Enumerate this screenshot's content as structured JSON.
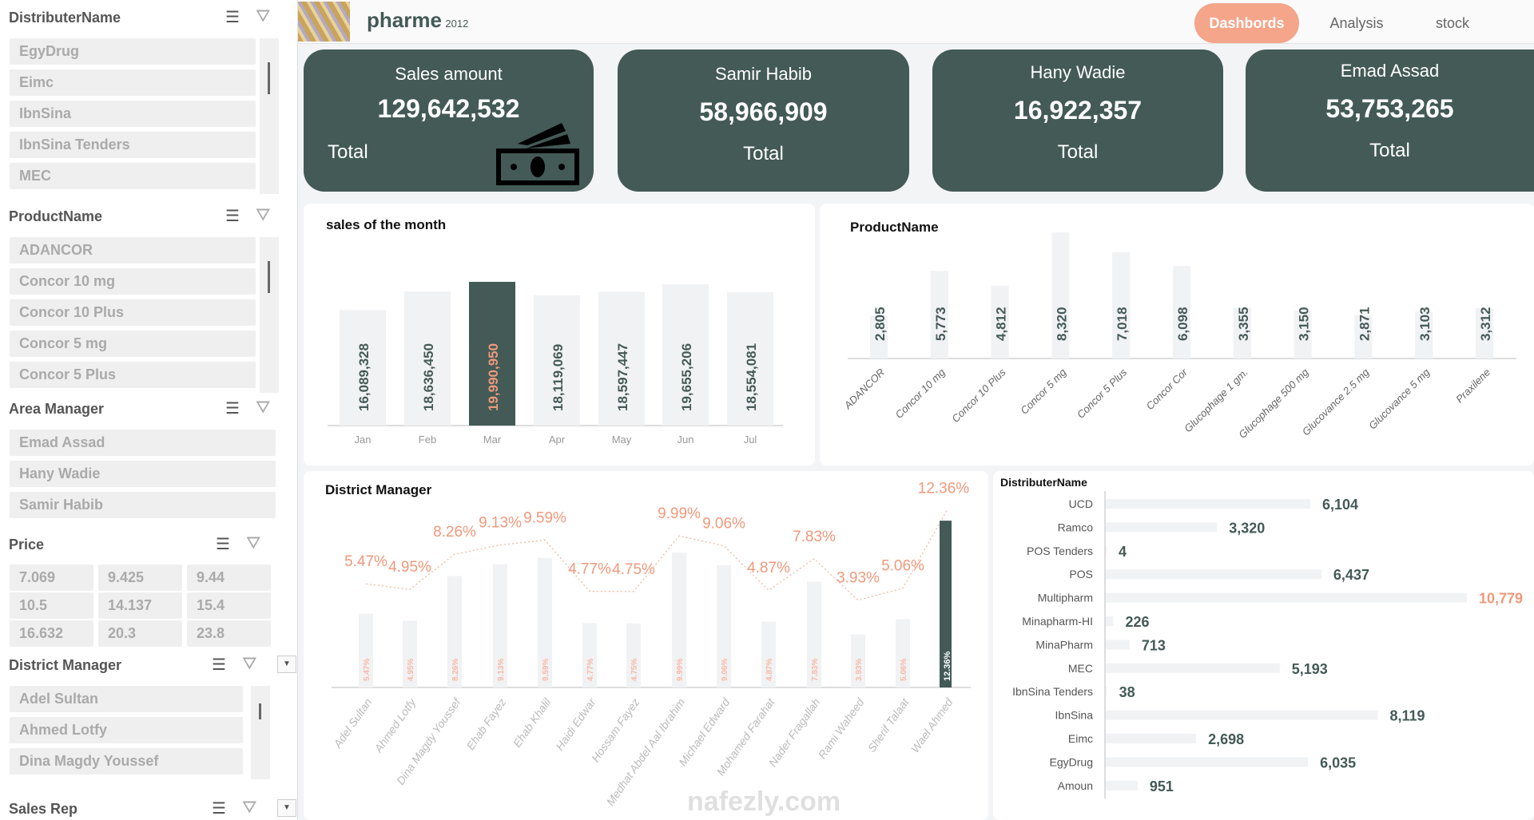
{
  "sidebar": {
    "slicers": [
      {
        "title": "DistributerName",
        "items": [
          "EgyDrug",
          "Eimc",
          "IbnSina",
          "IbnSina Tenders",
          "MEC"
        ]
      },
      {
        "title": "ProductName",
        "items": [
          "ADANCOR",
          "Concor 10 mg",
          "Concor 10 Plus",
          "Concor 5 mg",
          "Concor 5 Plus"
        ]
      },
      {
        "title": "Area Manager",
        "items": [
          "Emad Assad",
          "Hany Wadie",
          "Samir Habib"
        ]
      },
      {
        "title": "Price",
        "items": [
          "7.069",
          "9.425",
          "9.44",
          "10.5",
          "14.137",
          "15.4",
          "16.632",
          "20.3",
          "23.8"
        ]
      },
      {
        "title": "District Manager",
        "items": [
          "Adel Sultan",
          "Ahmed Lotfy",
          "Dina Magdy Youssef"
        ]
      },
      {
        "title": "Sales Rep",
        "items": []
      }
    ],
    "icons": {
      "multi_select": "multi-select-icon",
      "clear_filter": "clear-filter-icon"
    }
  },
  "header": {
    "title": "pharme",
    "year": "2012",
    "tabs": [
      "Dashbords",
      "Analysis",
      "stock"
    ],
    "active_tab": "Dashbords"
  },
  "kpis": [
    {
      "title": "Sales amount",
      "value": "129,642,532",
      "footer": "Total",
      "icon": "money-icon"
    },
    {
      "title": "Samir Habib",
      "value": "58,966,909",
      "footer": "Total"
    },
    {
      "title": "Hany Wadie",
      "value": "16,922,357",
      "footer": "Total"
    },
    {
      "title": "Emad Assad",
      "value": "53,753,265",
      "footer": "Total"
    }
  ],
  "colors": {
    "card": "#435a56",
    "accent": "#f4a58a",
    "bar": "#f1f2f4",
    "highlight": "#435a56",
    "label": "#f0997b"
  },
  "watermark": "nafezly.com",
  "chart_data": [
    {
      "type": "bar",
      "title": "sales of the month",
      "categories": [
        "Jan",
        "Feb",
        "Mar",
        "Apr",
        "May",
        "Jun",
        "Jul"
      ],
      "values": [
        16089328,
        18636450,
        19990950,
        18119069,
        18597447,
        19655206,
        18554081
      ],
      "labels": [
        "16,089,328",
        "18,636,450",
        "19,990,950",
        "18,119,069",
        "18,597,447",
        "19,655,206",
        "18,554,081"
      ],
      "highlight": "Mar"
    },
    {
      "type": "bar",
      "title": "ProductName",
      "categories": [
        "ADANCOR",
        "Concor 10 mg",
        "Concor 10 Plus",
        "Concor 5 mg",
        "Concor 5 Plus",
        "Concor Cor",
        "Glucophage 1 gm.",
        "Glucophage 500 mg",
        "Glucovance 2.5 mg",
        "Glucovance 5 mg",
        "Praxilene"
      ],
      "values": [
        2805,
        5773,
        4812,
        8320,
        7018,
        6098,
        3355,
        3150,
        2871,
        3103,
        3312
      ],
      "labels": [
        "2,805",
        "5,773",
        "4,812",
        "8,320",
        "7,018",
        "6,098",
        "3,355",
        "3,150",
        "2,871",
        "3,103",
        "3,312"
      ]
    },
    {
      "type": "bar",
      "title": "District Manager",
      "categories": [
        "Adel Sultan",
        "Ahmed Lotfy",
        "Dina Magdy Youssef",
        "Ehab Fayez",
        "Ehab Khalil",
        "Haidi Edwar",
        "Hossam Fayez",
        "Medhat Abdel Aal Ibrahim",
        "Michael Edward",
        "Mohamed Farahat",
        "Nader Fragallah",
        "Rami Waheed",
        "Sherif Talaat",
        "Wael Ahmed"
      ],
      "values": [
        5.47,
        4.95,
        8.26,
        9.13,
        9.59,
        4.77,
        4.75,
        9.99,
        9.06,
        4.87,
        7.83,
        3.93,
        5.06,
        12.36
      ],
      "labels": [
        "5.47%",
        "4.95%",
        "8.26%",
        "9.13%",
        "9.59%",
        "4.77%",
        "4.75%",
        "9.99%",
        "9.06%",
        "4.87%",
        "7.83%",
        "3.93%",
        "5.06%",
        "12.36%"
      ],
      "highlight": "Wael Ahmed",
      "line": "dotted"
    },
    {
      "type": "bar",
      "orientation": "horizontal",
      "title": "DistributerName",
      "categories": [
        "UCD",
        "Ramco",
        "POS Tenders",
        "POS",
        "Multipharm",
        "Minapharm-HI",
        "MinaPharm",
        "MEC",
        "IbnSina Tenders",
        "IbnSina",
        "Eimc",
        "EgyDrug",
        "Amoun"
      ],
      "values": [
        6104,
        3320,
        4,
        6437,
        10779,
        226,
        713,
        5193,
        38,
        8119,
        2698,
        6035,
        951
      ],
      "labels": [
        "6,104",
        "3,320",
        "4",
        "6,437",
        "10,779",
        "226",
        "713",
        "5,193",
        "38",
        "8,119",
        "2,698",
        "6,035",
        "951"
      ],
      "highlight": "Multipharm"
    }
  ]
}
